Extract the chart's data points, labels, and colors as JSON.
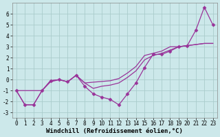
{
  "background_color": "#cce8ea",
  "grid_color": "#aacccc",
  "line_color": "#993399",
  "xlabel": "Windchill (Refroidissement éolien,°C)",
  "ylim": [
    -3.5,
    7.0
  ],
  "xlim": [
    -0.5,
    23.5
  ],
  "yticks": [
    -3,
    -2,
    -1,
    0,
    1,
    2,
    3,
    4,
    5,
    6
  ],
  "xticks": [
    0,
    1,
    2,
    3,
    4,
    5,
    6,
    7,
    8,
    9,
    10,
    11,
    12,
    13,
    14,
    15,
    16,
    17,
    18,
    19,
    20,
    21,
    22,
    23
  ],
  "tick_fontsize": 5.5,
  "label_fontsize": 6.5,
  "series_zigzag": {
    "x": [
      0,
      1,
      2,
      3,
      4,
      5,
      6,
      7,
      8,
      9,
      10,
      11,
      12,
      13,
      14,
      15,
      16,
      17,
      18,
      19,
      20,
      21,
      22,
      23
    ],
    "y": [
      -1.0,
      -2.3,
      -2.3,
      -1.0,
      -0.1,
      0.0,
      -0.2,
      0.4,
      -0.6,
      -1.3,
      -1.6,
      -1.8,
      -2.3,
      -1.3,
      -0.3,
      1.1,
      2.3,
      2.3,
      2.6,
      3.0,
      3.1,
      4.5,
      6.6,
      5.0
    ]
  },
  "series_smooth1": {
    "x": [
      0,
      3,
      4,
      5,
      6,
      7,
      8,
      11,
      12,
      13,
      14,
      15,
      16,
      17,
      18,
      19,
      20,
      21,
      22,
      23
    ],
    "y": [
      -1.0,
      -1.0,
      -0.2,
      0.0,
      -0.2,
      0.4,
      -0.3,
      -0.1,
      0.1,
      0.6,
      1.2,
      2.2,
      2.4,
      2.6,
      3.0,
      3.0,
      3.1,
      3.2,
      3.3,
      3.3
    ]
  },
  "series_smooth2": {
    "x": [
      0,
      1,
      2,
      3,
      4,
      5,
      6,
      7,
      8,
      9,
      10,
      11,
      12,
      13,
      14,
      15,
      16,
      17,
      18,
      19,
      20,
      21,
      22,
      23
    ],
    "y": [
      -1.0,
      -2.3,
      -2.3,
      -1.0,
      -0.1,
      0.0,
      -0.2,
      0.4,
      -0.3,
      -0.8,
      -0.6,
      -0.5,
      -0.3,
      0.2,
      0.8,
      1.8,
      2.2,
      2.4,
      2.7,
      3.0,
      3.1,
      3.2,
      3.3,
      3.3
    ]
  }
}
